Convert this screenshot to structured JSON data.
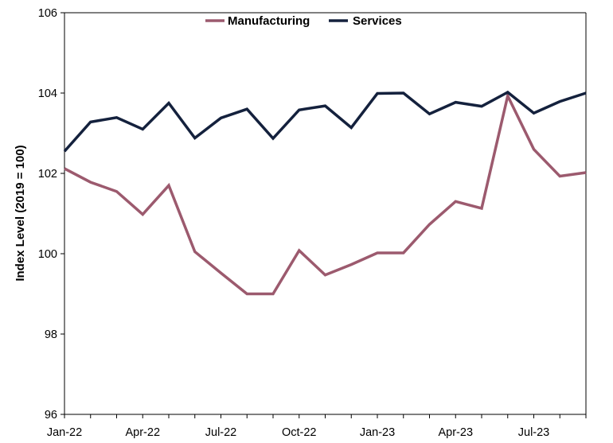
{
  "chart_data": {
    "type": "line",
    "title": "",
    "xlabel": "",
    "ylabel": "Index Level (2019 = 100)",
    "ylim": [
      96,
      106
    ],
    "yticks": [
      "96",
      "98",
      "100",
      "102",
      "104",
      "106"
    ],
    "x": [
      "Jan-22",
      "Feb-22",
      "Mar-22",
      "Apr-22",
      "May-22",
      "Jun-22",
      "Jul-22",
      "Aug-22",
      "Sep-22",
      "Oct-22",
      "Nov-22",
      "Dec-22",
      "Jan-23",
      "Feb-23",
      "Mar-23",
      "Apr-23",
      "May-23",
      "Jun-23",
      "Jul-23",
      "Aug-23",
      "Sep-23"
    ],
    "xtick_labels": [
      "Jan-22",
      "Apr-22",
      "Jul-22",
      "Oct-22",
      "Jan-23",
      "Apr-23",
      "Jul-23"
    ],
    "legend_position": "top-center",
    "grid": false,
    "series": [
      {
        "name": "Manufacturing",
        "color": "#9c5a6e",
        "values": [
          102.12,
          101.78,
          101.55,
          100.98,
          101.7,
          100.05,
          99.52,
          99.0,
          99.0,
          100.08,
          99.47,
          99.73,
          100.02,
          100.02,
          100.73,
          101.3,
          101.13,
          103.93,
          102.6,
          101.93,
          102.02
        ]
      },
      {
        "name": "Services",
        "color": "#14213d",
        "values": [
          102.55,
          103.28,
          103.39,
          103.1,
          103.75,
          102.88,
          103.38,
          103.6,
          102.87,
          103.58,
          103.68,
          103.14,
          103.99,
          104.0,
          103.48,
          103.77,
          103.67,
          104.02,
          103.5,
          103.79,
          104.0
        ]
      }
    ]
  }
}
